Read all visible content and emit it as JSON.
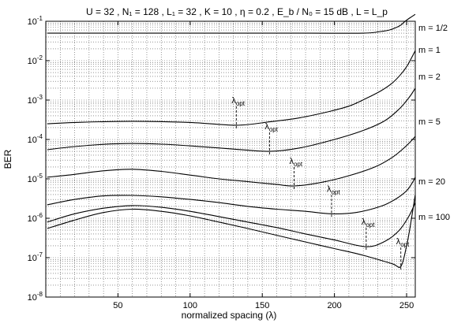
{
  "chart_data": {
    "type": "line",
    "title": "U = 32 , N₁ = 128 , L₁ = 32 , K = 10 , η = 0.2 , E_b / N₀ = 15 dB , L = L_p",
    "xlabel": "normalized spacing (λ)",
    "ylabel": "BER",
    "xlim": [
      0,
      256
    ],
    "ylim_log10": [
      -8,
      -1
    ],
    "y_scale": "log",
    "x_ticks": [
      50,
      100,
      150,
      200,
      250
    ],
    "x_tick_labels": [
      "50",
      "100",
      "150",
      "200",
      "250"
    ],
    "y_tick_labels": [
      {
        "exp": -1,
        "label": "10",
        "sup": "-1"
      },
      {
        "exp": -2,
        "label": "10",
        "sup": "-2"
      },
      {
        "exp": -3,
        "label": "10",
        "sup": "-3"
      },
      {
        "exp": -4,
        "label": "10",
        "sup": "-4"
      },
      {
        "exp": -5,
        "label": "10",
        "sup": "-5"
      },
      {
        "exp": -6,
        "label": "10",
        "sup": "-6"
      },
      {
        "exp": -7,
        "label": "10",
        "sup": "-7"
      },
      {
        "exp": -8,
        "label": "10",
        "sup": "-8"
      }
    ],
    "grid": true,
    "optimum_label": {
      "main": "λ",
      "sub": "opt"
    },
    "series": [
      {
        "name": "m = 1/2",
        "x": [
          1,
          30,
          60,
          90,
          120,
          150,
          175,
          200,
          225,
          240,
          248,
          252,
          256
        ],
        "y": [
          0.5,
          0.5,
          0.5,
          0.5,
          0.5,
          0.5,
          0.5,
          0.5,
          0.5,
          0.5,
          0.5,
          0.5,
          0.5
        ]
      },
      {
        "name": "m = 1",
        "x": [
          1,
          60,
          120,
          180,
          220,
          232,
          238,
          243,
          246,
          249,
          252,
          256
        ],
        "y": [
          0.05,
          0.05,
          0.05,
          0.05,
          0.05,
          0.055,
          0.06,
          0.07,
          0.08,
          0.1,
          0.12,
          0.15
        ]
      },
      {
        "name": "m = 2",
        "x": [
          1,
          20,
          60,
          100,
          132,
          155,
          175,
          195,
          210,
          222,
          232,
          240,
          246,
          250,
          253,
          256
        ],
        "y": [
          0.00025,
          0.00027,
          0.00029,
          0.00027,
          0.00023,
          0.00028,
          0.00035,
          0.0005,
          0.0007,
          0.0011,
          0.0017,
          0.0027,
          0.0045,
          0.007,
          0.011,
          0.018
        ]
      },
      {
        "name": "m = 5",
        "x": [
          1,
          20,
          40,
          60,
          80,
          100,
          130,
          155,
          175,
          200,
          220,
          235,
          245,
          252,
          256
        ],
        "y": [
          5.5e-05,
          6.6e-05,
          7.5e-05,
          7.9e-05,
          7.6e-05,
          6.9e-05,
          5.7e-05,
          5e-05,
          6e-05,
          0.0001,
          0.00017,
          0.0003,
          0.0006,
          0.0012,
          0.002
        ]
      },
      {
        "name": "m = 20",
        "x": [
          1,
          20,
          40,
          60,
          80,
          100,
          120,
          140,
          160,
          172,
          190,
          210,
          228,
          240,
          248,
          253,
          256
        ],
        "y": [
          1.1e-05,
          1.3e-05,
          1.6e-05,
          1.75e-05,
          1.55e-05,
          1.25e-05,
          1e-05,
          8.5e-06,
          7.2e-06,
          6.6e-06,
          8e-06,
          1.2e-05,
          2e-05,
          3.5e-05,
          6e-05,
          9e-05,
          0.00012
        ]
      },
      {
        "name": "m = 100",
        "x": [
          1,
          20,
          40,
          60,
          80,
          100,
          120,
          140,
          160,
          180,
          198,
          215,
          232,
          242,
          250,
          254,
          256
        ],
        "y": [
          2.2e-06,
          3e-06,
          3.7e-06,
          3.8e-06,
          3.5e-06,
          3e-06,
          2.5e-06,
          2e-06,
          1.7e-06,
          1.5e-06,
          1.3e-06,
          1.4e-06,
          2e-06,
          3e-06,
          5e-06,
          8e-06,
          1.1e-05
        ]
      },
      {
        "name": "",
        "x": [
          1,
          20,
          40,
          60,
          80,
          100,
          120,
          140,
          160,
          180,
          200,
          222,
          235,
          245,
          252,
          256
        ],
        "y": [
          8e-07,
          1.3e-06,
          1.8e-06,
          2.1e-06,
          1.9e-06,
          1.5e-06,
          1.1e-06,
          8e-07,
          5.8e-07,
          4e-07,
          2.8e-07,
          1.9e-07,
          2.6e-07,
          5e-07,
          1.2e-06,
          2.5e-06
        ]
      },
      {
        "name": "",
        "x": [
          1,
          20,
          40,
          60,
          80,
          100,
          120,
          140,
          160,
          180,
          200,
          220,
          240,
          246,
          250,
          253,
          256
        ],
        "y": [
          5.5e-07,
          9e-07,
          1.4e-06,
          1.7e-06,
          1.5e-06,
          1.15e-06,
          8e-07,
          5.5e-07,
          3.7e-07,
          2.5e-07,
          1.7e-07,
          1.15e-07,
          7e-08,
          6e-08,
          2e-07,
          8e-07,
          4e-06
        ]
      }
    ],
    "optima": [
      {
        "x": 132,
        "y": 0.00023
      },
      {
        "x": 155,
        "y": 5e-05
      },
      {
        "x": 172,
        "y": 6.6e-06
      },
      {
        "x": 198,
        "y": 1.3e-06
      },
      {
        "x": 222,
        "y": 1.9e-07
      },
      {
        "x": 246,
        "y": 6e-08
      }
    ]
  }
}
